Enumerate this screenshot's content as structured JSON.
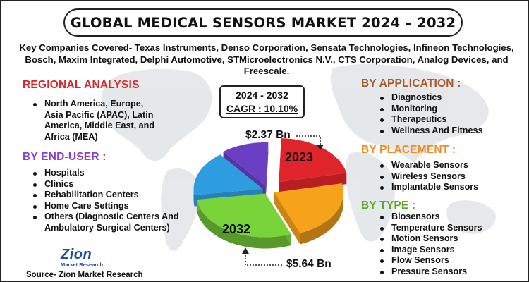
{
  "title": "GLOBAL MEDICAL SENSORS MARKET 2024 – 2032",
  "companies": "Key Companies Covered- Texas Instruments, Denso Corporation, Sensata Technologies, Infineon Technologies, Bosch, Maxim Integrated, Delphi Automotive, STMicroelectronics N.V., CTS Corporation, Analog Devices, and Freescale.",
  "regional": {
    "heading": "REGIONAL ANALYSIS",
    "lines": [
      "North America, Europe,",
      "Asia Pacific (APAC), Latin",
      "America, Middle East, and",
      "Africa (MEA)"
    ]
  },
  "end_user": {
    "heading": "BY END-USER :",
    "items": [
      "Hospitals",
      "Clinics",
      "Rehabilitation Centers",
      "Home Care Settings",
      "Others (Diagnostic Centers And",
      "Ambulatory Surgical Centers)"
    ]
  },
  "application": {
    "heading": "BY APPLICATION :",
    "items": [
      "Diagnostics",
      "Monitoring",
      "Therapeutics",
      "Wellness And Fitness"
    ]
  },
  "placement": {
    "heading": "BY PLACEMENT :",
    "items": [
      "Wearable Sensors",
      "Wireless Sensors",
      "Implantable Sensors"
    ]
  },
  "type": {
    "heading": "BY TYPE :",
    "items": [
      "Biosensors",
      "Temperature Sensors",
      "Motion Sensors",
      "Image Sensors",
      "Flow Sensors",
      "Pressure Sensors"
    ]
  },
  "cagr": {
    "years": "2024 - 2032",
    "value": "CAGR : 10.10%"
  },
  "market": {
    "value_2023": "$2.37 Bn",
    "year_2023": "2023",
    "value_2032": "$5.64 Bn",
    "year_2032": "2032"
  },
  "logo": {
    "main": "Zion",
    "sub": "Market Research"
  },
  "source": "Source- Zion Market Research",
  "colors": {
    "heading_red": "#d9262b",
    "heading_purple": "#8a3fd1",
    "heading_orange": "#f28a1e",
    "heading_brown": "#a45a2a",
    "heading_green": "#5aa82a",
    "slice_red": "#e0242c",
    "slice_orange": "#f7a21b",
    "slice_green": "#79d43a",
    "slice_blue": "#2d9de0",
    "slice_purple": "#6b3fc4"
  }
}
